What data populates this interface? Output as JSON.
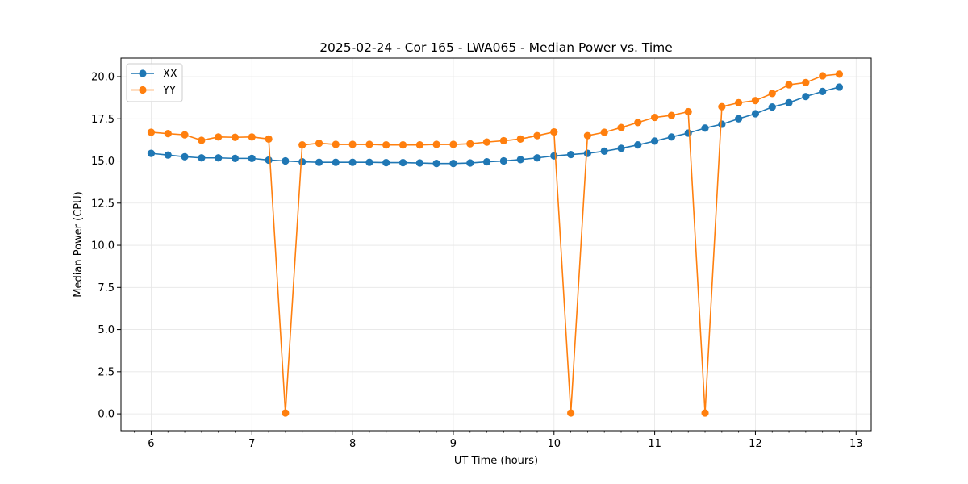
{
  "chart_data": {
    "type": "line",
    "title": "2025-02-24 - Cor 165 - LWA065 - Median Power vs. Time",
    "xlabel": "UT Time (hours)",
    "ylabel": "Median Power (CPU)",
    "xlim": [
      5.7,
      13.15
    ],
    "ylim": [
      -1.0,
      21.1
    ],
    "xticks": [
      6,
      7,
      8,
      9,
      10,
      11,
      12,
      13
    ],
    "xtick_labels": [
      "6",
      "7",
      "8",
      "9",
      "10",
      "11",
      "12",
      "13"
    ],
    "yticks": [
      0,
      2.5,
      5,
      7.5,
      10,
      12.5,
      15,
      17.5,
      20
    ],
    "ytick_labels": [
      "0.0",
      "2.5",
      "5.0",
      "7.5",
      "10.0",
      "12.5",
      "15.0",
      "17.5",
      "20.0"
    ],
    "grid": true,
    "legend_position": "top-left",
    "x": [
      6.0,
      6.167,
      6.333,
      6.5,
      6.667,
      6.833,
      7.0,
      7.167,
      7.333,
      7.5,
      7.667,
      7.833,
      8.0,
      8.167,
      8.333,
      8.5,
      8.667,
      8.833,
      9.0,
      9.167,
      9.333,
      9.5,
      9.667,
      9.833,
      10.0,
      10.167,
      10.333,
      10.5,
      10.667,
      10.833,
      11.0,
      11.167,
      11.333,
      11.5,
      11.667,
      11.833,
      12.0,
      12.167,
      12.333,
      12.5,
      12.667,
      12.833
    ],
    "series": [
      {
        "name": "XX",
        "color": "#1f77b4",
        "values": [
          15.45,
          15.35,
          15.25,
          15.18,
          15.18,
          15.15,
          15.15,
          15.05,
          15.0,
          14.95,
          14.92,
          14.92,
          14.92,
          14.92,
          14.9,
          14.9,
          14.88,
          14.85,
          14.85,
          14.88,
          14.95,
          15.0,
          15.08,
          15.18,
          15.3,
          15.38,
          15.45,
          15.58,
          15.75,
          15.95,
          16.18,
          16.42,
          16.65,
          16.95,
          17.18,
          17.5,
          17.8,
          18.2,
          18.45,
          18.82,
          19.12,
          19.38
        ]
      },
      {
        "name": "YY",
        "color": "#ff7f0e",
        "values": [
          16.7,
          16.62,
          16.55,
          16.22,
          16.42,
          16.4,
          16.42,
          16.3,
          0.05,
          15.95,
          16.05,
          15.98,
          15.98,
          15.98,
          15.95,
          15.95,
          15.95,
          15.98,
          15.98,
          16.02,
          16.12,
          16.2,
          16.3,
          16.5,
          16.72,
          0.05,
          16.5,
          16.7,
          16.98,
          17.28,
          17.58,
          17.7,
          17.92,
          0.05,
          18.22,
          18.45,
          18.58,
          19.0,
          19.52,
          19.65,
          20.05,
          20.15
        ]
      }
    ]
  }
}
